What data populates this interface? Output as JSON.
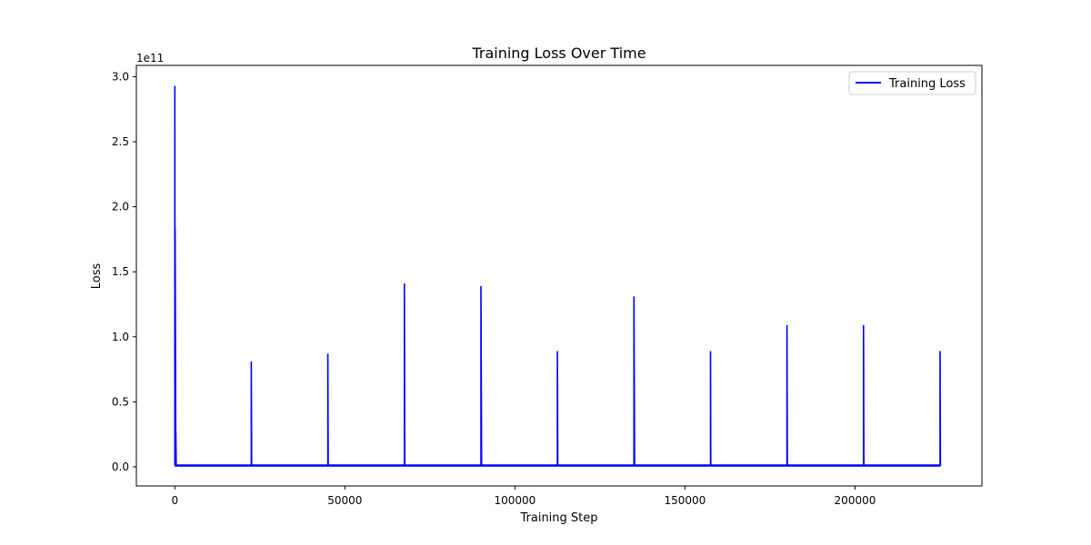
{
  "chart_data": {
    "type": "line",
    "title": "Training Loss Over Time",
    "xlabel": "Training Step",
    "ylabel": "Loss",
    "y_scale_label": "1e11",
    "y_multiplier": 100000000000,
    "xlim": [
      -11300,
      237300
    ],
    "ylim": [
      -0.147,
      3.087
    ],
    "xticks": [
      0,
      50000,
      100000,
      150000,
      200000
    ],
    "xtick_labels": [
      "0",
      "50000",
      "100000",
      "150000",
      "200000"
    ],
    "yticks": [
      0.0,
      0.5,
      1.0,
      1.5,
      2.0,
      2.5,
      3.0
    ],
    "ytick_labels": [
      "0.0",
      "0.5",
      "1.0",
      "1.5",
      "2.0",
      "2.5",
      "3.0"
    ],
    "grid": false,
    "legend_position": "top-right",
    "series": [
      {
        "name": "Training Loss",
        "color": "#0000ff",
        "baseline": 0.01,
        "x": [
          0,
          0,
          100,
          100,
          300,
          300,
          400,
          400,
          22500,
          22500,
          22600,
          45000,
          45000,
          45100,
          67500,
          67500,
          67600,
          90000,
          90000,
          90200,
          112500,
          112500,
          112600,
          135000,
          135000,
          135200,
          157500,
          157500,
          157600,
          180000,
          180000,
          180100,
          202500,
          202500,
          202600,
          225000,
          225000,
          225100
        ],
        "y": [
          0.01,
          2.93,
          0.02,
          1.84,
          0.02,
          0.27,
          0.02,
          0.01,
          0.01,
          0.81,
          0.01,
          0.01,
          0.87,
          0.01,
          0.01,
          1.41,
          0.01,
          0.01,
          1.39,
          0.01,
          0.01,
          0.89,
          0.01,
          0.01,
          1.31,
          0.01,
          0.01,
          0.89,
          0.01,
          0.01,
          1.09,
          0.01,
          0.01,
          1.09,
          0.01,
          0.01,
          0.89,
          0.01
        ]
      }
    ]
  }
}
